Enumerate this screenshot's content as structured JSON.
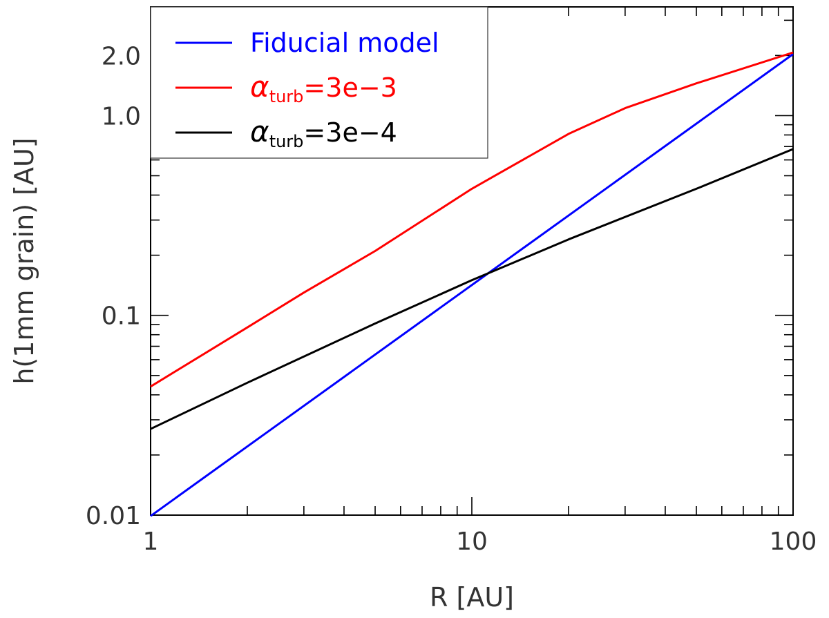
{
  "chart_data": {
    "type": "line",
    "xlabel": "R [AU]",
    "ylabel": "h(1mm grain) [AU]",
    "xscale": "log",
    "yscale": "log",
    "xlim": [
      1,
      100
    ],
    "ylim": [
      0.01,
      3.5
    ],
    "xticks": [
      1,
      10,
      100
    ],
    "xtick_labels": [
      "1",
      "10",
      "100"
    ],
    "yticks": [
      0.01,
      0.1,
      1.0,
      2.0
    ],
    "ytick_labels": [
      "0.01",
      "0.1",
      "1.0",
      "2.0"
    ],
    "grid": false,
    "legend_position": "top-left",
    "series": [
      {
        "name": "Fiducial model",
        "legend_symbol": "",
        "legend_text": "Fiducial model",
        "legend_sub": "",
        "legend_suffix": "",
        "color": "#0000ff",
        "x": [
          1,
          11.7,
          100
        ],
        "y": [
          0.0099,
          0.17,
          2.03
        ]
      },
      {
        "name": "αturb=3e-3",
        "legend_symbol": "α",
        "legend_text": "",
        "legend_sub": "turb",
        "legend_suffix": "=3e−3",
        "color": "#ff0000",
        "x": [
          1,
          2,
          3,
          5,
          10,
          20,
          30,
          50,
          100
        ],
        "y": [
          0.044,
          0.087,
          0.13,
          0.21,
          0.43,
          0.81,
          1.09,
          1.45,
          2.07
        ]
      },
      {
        "name": "αturb=3e-4",
        "legend_symbol": "α",
        "legend_text": "",
        "legend_sub": "turb",
        "legend_suffix": "=3e−4",
        "color": "#000000",
        "x": [
          1,
          2,
          5,
          10,
          20,
          50,
          100
        ],
        "y": [
          0.027,
          0.046,
          0.091,
          0.15,
          0.24,
          0.43,
          0.68
        ]
      }
    ]
  }
}
